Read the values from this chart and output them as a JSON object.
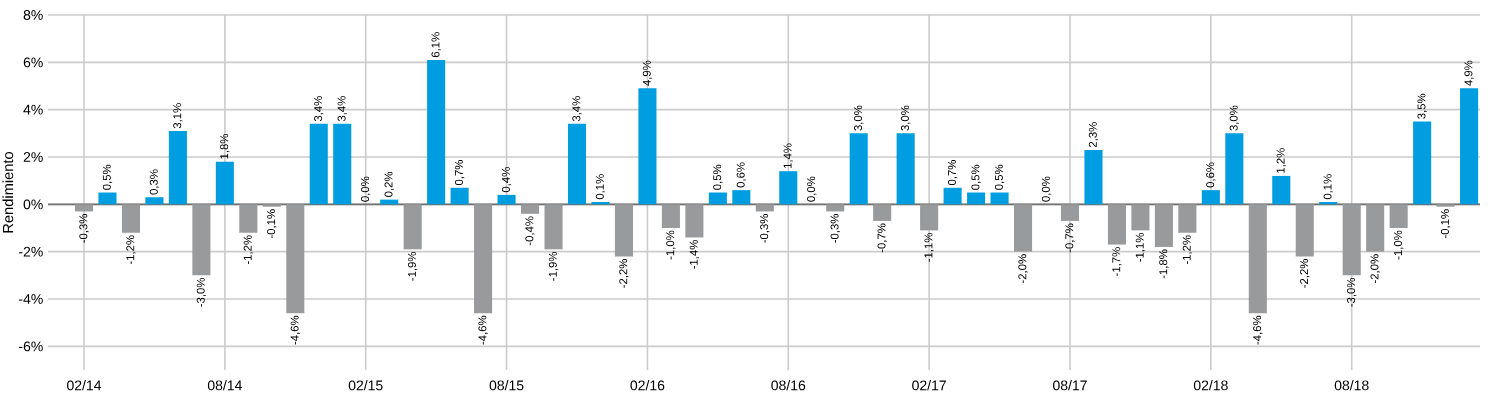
{
  "chart_data": {
    "type": "bar",
    "ylabel": "Rendimiento",
    "x": [
      "2014-02",
      "2014-03",
      "2014-04",
      "2014-05",
      "2014-06",
      "2014-07",
      "2014-08",
      "2014-09",
      "2014-10",
      "2014-11",
      "2014-12",
      "2015-01",
      "2015-02",
      "2015-03",
      "2015-04",
      "2015-05",
      "2015-06",
      "2015-07",
      "2015-08",
      "2015-09",
      "2015-10",
      "2015-11",
      "2015-12",
      "2016-01",
      "2016-02",
      "2016-03",
      "2016-04",
      "2016-05",
      "2016-06",
      "2016-07",
      "2016-08",
      "2016-09",
      "2016-10",
      "2016-11",
      "2016-12",
      "2017-01",
      "2017-02",
      "2017-03",
      "2017-04",
      "2017-05",
      "2017-06",
      "2017-07",
      "2017-08",
      "2017-09",
      "2017-10",
      "2017-11",
      "2017-12",
      "2018-01",
      "2018-02",
      "2018-03",
      "2018-04",
      "2018-05",
      "2018-06",
      "2018-07",
      "2018-08",
      "2018-09",
      "2018-10",
      "2018-11",
      "2018-12",
      "2019-01"
    ],
    "values": [
      -0.3,
      0.5,
      -1.2,
      0.3,
      3.1,
      -3.0,
      1.8,
      -1.2,
      -0.1,
      -4.6,
      3.4,
      3.4,
      0.0,
      0.2,
      -1.9,
      6.1,
      0.7,
      -4.6,
      0.4,
      -0.4,
      -1.9,
      3.4,
      0.1,
      -2.2,
      4.9,
      -1.0,
      -1.4,
      0.5,
      0.6,
      -0.3,
      1.4,
      0.0,
      -0.3,
      3.0,
      -0.7,
      3.0,
      -1.1,
      0.7,
      0.5,
      0.5,
      -2.0,
      0.0,
      -0.7,
      2.3,
      -1.7,
      -1.1,
      -1.8,
      -1.2,
      0.6,
      3.0,
      -4.6,
      1.2,
      -2.2,
      0.1,
      -3.0,
      -2.0,
      -1.0,
      3.5,
      -0.1,
      4.9
    ],
    "value_labels": [
      "-0,3%",
      "0,5%",
      "-1,2%",
      "0,3%",
      "3,1%",
      "-3,0%",
      "1,8%",
      "-1,2%",
      "-0,1%",
      "-4,6%",
      "3,4%",
      "3,4%",
      "0,0%",
      "0,2%",
      "-1,9%",
      "6,1%",
      "0,7%",
      "-4,6%",
      "0,4%",
      "-0,4%",
      "-1,9%",
      "3,4%",
      "0,1%",
      "-2,2%",
      "4,9%",
      "-1,0%",
      "-1,4%",
      "0,5%",
      "0,6%",
      "-0,3%",
      "1,4%",
      "0,0%",
      "-0,3%",
      "3,0%",
      "-0,7%",
      "3,0%",
      "-1,1%",
      "0,7%",
      "0,5%",
      "0,5%",
      "-2,0%",
      "0,0%",
      "-0,7%",
      "2,3%",
      "-1,7%",
      "-1,1%",
      "-1,8%",
      "-1,2%",
      "0,6%",
      "3,0%",
      "-4,6%",
      "1,2%",
      "-2,2%",
      "0,1%",
      "-3,0%",
      "-2,0%",
      "-1,0%",
      "3,5%",
      "-0,1%",
      "4,9%"
    ],
    "colors": [
      "#999a9c",
      "#009ee0",
      "#999a9c",
      "#009ee0",
      "#009ee0",
      "#999a9c",
      "#009ee0",
      "#999a9c",
      "#999a9c",
      "#999a9c",
      "#009ee0",
      "#009ee0",
      "#009ee0",
      "#009ee0",
      "#999a9c",
      "#009ee0",
      "#009ee0",
      "#999a9c",
      "#009ee0",
      "#999a9c",
      "#999a9c",
      "#009ee0",
      "#009ee0",
      "#999a9c",
      "#009ee0",
      "#999a9c",
      "#999a9c",
      "#009ee0",
      "#009ee0",
      "#999a9c",
      "#009ee0",
      "#009ee0",
      "#999a9c",
      "#009ee0",
      "#999a9c",
      "#009ee0",
      "#999a9c",
      "#009ee0",
      "#009ee0",
      "#009ee0",
      "#999a9c",
      "#009ee0",
      "#999a9c",
      "#009ee0",
      "#999a9c",
      "#999a9c",
      "#999a9c",
      "#999a9c",
      "#009ee0",
      "#009ee0",
      "#999a9c",
      "#009ee0",
      "#999a9c",
      "#009ee0",
      "#999a9c",
      "#999a9c",
      "#999a9c",
      "#009ee0",
      "#999a9c",
      "#009ee0"
    ],
    "xlim": [
      "2013-12-15",
      "2019-01-15"
    ],
    "xticks": [
      {
        "value": "2014-02",
        "label": "02/14"
      },
      {
        "value": "2014-08",
        "label": "08/14"
      },
      {
        "value": "2015-02",
        "label": "02/15"
      },
      {
        "value": "2015-08",
        "label": "08/15"
      },
      {
        "value": "2016-02",
        "label": "02/16"
      },
      {
        "value": "2016-08",
        "label": "08/16"
      },
      {
        "value": "2017-02",
        "label": "02/17"
      },
      {
        "value": "2017-08",
        "label": "08/17"
      },
      {
        "value": "2018-02",
        "label": "02/18"
      },
      {
        "value": "2018-08",
        "label": "08/18"
      }
    ],
    "ylim": [
      -7,
      8
    ],
    "yticks": [
      {
        "value": -6,
        "label": "-6%"
      },
      {
        "value": -4,
        "label": "-4%"
      },
      {
        "value": -2,
        "label": "-2%"
      },
      {
        "value": 0,
        "label": "0%"
      },
      {
        "value": 2,
        "label": "2%"
      },
      {
        "value": 4,
        "label": "4%"
      },
      {
        "value": 6,
        "label": "6%"
      },
      {
        "value": 8,
        "label": "8%"
      }
    ],
    "grid": true
  }
}
